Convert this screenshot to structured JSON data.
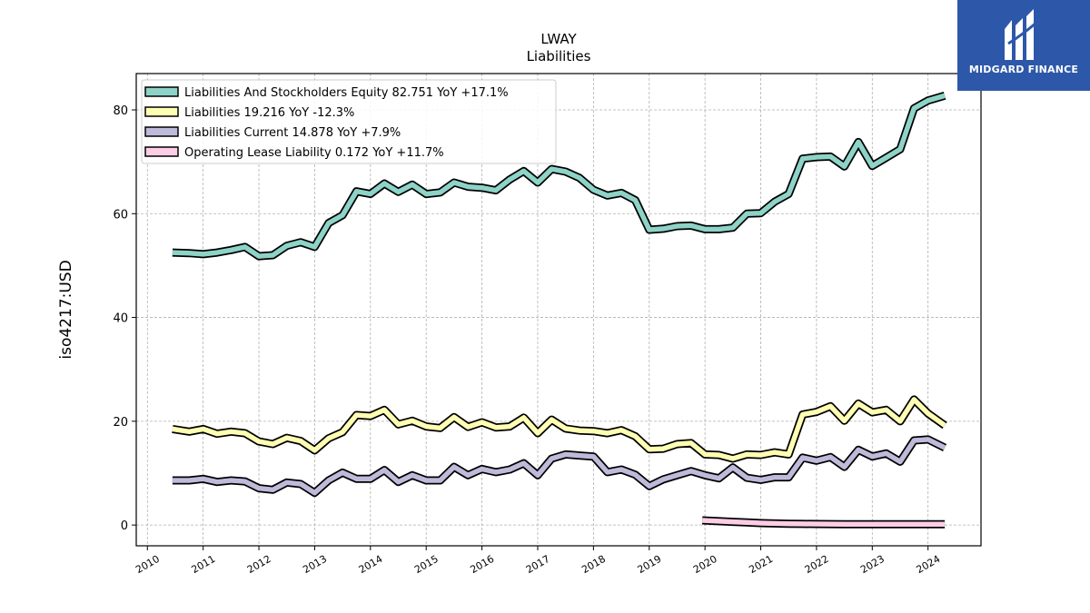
{
  "chart_data": {
    "type": "line",
    "title": "LWAY",
    "subtitle": "Liabilities",
    "ylabel": "iso4217:USD",
    "xlabel": "",
    "ylim": [
      -4,
      87
    ],
    "yticks": [
      0,
      20,
      40,
      60,
      80
    ],
    "xlim": [
      2009.8,
      2024.95
    ],
    "xticks": [
      2010,
      2011,
      2012,
      2013,
      2014,
      2015,
      2016,
      2017,
      2018,
      2019,
      2020,
      2021,
      2022,
      2023,
      2024
    ],
    "xticklabels": [
      "2010",
      "2011",
      "2012",
      "2013",
      "2014",
      "2015",
      "2016",
      "2017",
      "2018",
      "2019",
      "2020",
      "2021",
      "2022",
      "2023",
      "2024"
    ],
    "grid": true,
    "legend_position": "upper-left",
    "series": [
      {
        "name": "Liabilities And Stockholders Equity",
        "legend_label": "Liabilities And Stockholders Equity  82.751 YoY +17.1%",
        "color": "#8dd3c7",
        "x": [
          2010.45,
          2010.75,
          2011.0,
          2011.25,
          2011.5,
          2011.75,
          2012.0,
          2012.25,
          2012.5,
          2012.75,
          2013.0,
          2013.25,
          2013.5,
          2013.75,
          2014.0,
          2014.25,
          2014.5,
          2014.75,
          2015.0,
          2015.25,
          2015.5,
          2015.75,
          2016.0,
          2016.25,
          2016.5,
          2016.75,
          2017.0,
          2017.25,
          2017.5,
          2017.75,
          2018.0,
          2018.25,
          2018.5,
          2018.75,
          2019.0,
          2019.25,
          2019.5,
          2019.75,
          2020.0,
          2020.25,
          2020.5,
          2020.75,
          2021.0,
          2021.25,
          2021.5,
          2021.75,
          2022.0,
          2022.25,
          2022.5,
          2022.75,
          2023.0,
          2023.25,
          2023.5,
          2023.75,
          2024.0,
          2024.3
        ],
        "y": [
          52.5,
          52.4,
          52.2,
          52.5,
          53.0,
          53.6,
          51.8,
          52.0,
          53.8,
          54.5,
          53.6,
          58.2,
          59.7,
          64.3,
          63.8,
          65.8,
          64.2,
          65.6,
          63.8,
          64.1,
          66.0,
          65.2,
          65.0,
          64.5,
          66.6,
          68.2,
          66.0,
          68.6,
          68.1,
          66.9,
          64.6,
          63.5,
          64.0,
          62.6,
          56.9,
          57.1,
          57.6,
          57.7,
          57.0,
          57.0,
          57.3,
          60.0,
          60.1,
          62.3,
          63.8,
          70.6,
          70.9,
          71.0,
          69.1,
          73.8,
          69.2,
          70.8,
          72.4,
          80.3,
          81.8,
          82.75
        ]
      },
      {
        "name": "Liabilities",
        "legend_label": "Liabilities  19.216 YoY -12.3%",
        "color": "#ffffb3",
        "x": [
          2010.45,
          2010.75,
          2011.0,
          2011.25,
          2011.5,
          2011.75,
          2012.0,
          2012.25,
          2012.5,
          2012.75,
          2013.0,
          2013.25,
          2013.5,
          2013.75,
          2014.0,
          2014.25,
          2014.5,
          2014.75,
          2015.0,
          2015.25,
          2015.5,
          2015.75,
          2016.0,
          2016.25,
          2016.5,
          2016.75,
          2017.0,
          2017.25,
          2017.5,
          2017.75,
          2018.0,
          2018.25,
          2018.5,
          2018.75,
          2019.0,
          2019.25,
          2019.5,
          2019.75,
          2020.0,
          2020.25,
          2020.5,
          2020.75,
          2021.0,
          2021.25,
          2021.5,
          2021.75,
          2022.0,
          2022.25,
          2022.5,
          2022.75,
          2023.0,
          2023.25,
          2023.5,
          2023.75,
          2024.0,
          2024.3
        ],
        "y": [
          18.5,
          18.0,
          18.5,
          17.6,
          18.0,
          17.7,
          16.1,
          15.6,
          16.8,
          16.2,
          14.4,
          16.7,
          17.9,
          21.2,
          21.0,
          22.2,
          19.4,
          20.1,
          19.0,
          18.7,
          20.8,
          18.9,
          19.8,
          18.8,
          19.0,
          20.7,
          17.7,
          20.3,
          18.6,
          18.2,
          18.1,
          17.7,
          18.3,
          17.1,
          14.6,
          14.7,
          15.6,
          15.8,
          13.6,
          13.5,
          12.8,
          13.6,
          13.5,
          14.0,
          13.6,
          21.3,
          21.8,
          22.9,
          20.1,
          23.4,
          21.7,
          22.2,
          20.0,
          24.2,
          21.5,
          19.2
        ]
      },
      {
        "name": "Liabilities Current",
        "legend_label": "Liabilities Current  14.878 YoY +7.9%",
        "color": "#bebada",
        "x": [
          2010.45,
          2010.75,
          2011.0,
          2011.25,
          2011.5,
          2011.75,
          2012.0,
          2012.25,
          2012.5,
          2012.75,
          2013.0,
          2013.25,
          2013.5,
          2013.75,
          2014.0,
          2014.25,
          2014.5,
          2014.75,
          2015.0,
          2015.25,
          2015.5,
          2015.75,
          2016.0,
          2016.25,
          2016.5,
          2016.75,
          2017.0,
          2017.25,
          2017.5,
          2017.75,
          2018.0,
          2018.25,
          2018.5,
          2018.75,
          2019.0,
          2019.25,
          2019.5,
          2019.75,
          2020.0,
          2020.25,
          2020.5,
          2020.75,
          2021.0,
          2021.25,
          2021.5,
          2021.75,
          2022.0,
          2022.25,
          2022.5,
          2022.75,
          2023.0,
          2023.25,
          2023.5,
          2023.75,
          2024.0,
          2024.3
        ],
        "y": [
          8.6,
          8.6,
          8.9,
          8.3,
          8.6,
          8.4,
          7.1,
          6.8,
          8.2,
          7.9,
          6.2,
          8.6,
          10.1,
          8.9,
          8.9,
          10.6,
          8.3,
          9.6,
          8.6,
          8.6,
          11.2,
          9.6,
          10.8,
          10.2,
          10.7,
          11.9,
          9.6,
          12.8,
          13.6,
          13.4,
          13.2,
          10.2,
          10.7,
          9.7,
          7.5,
          8.8,
          9.6,
          10.4,
          9.6,
          9.0,
          11.1,
          9.1,
          8.7,
          9.2,
          9.2,
          13.0,
          12.4,
          13.1,
          11.2,
          14.5,
          13.2,
          13.8,
          12.2,
          16.3,
          16.5,
          14.9
        ]
      },
      {
        "name": "Operating Lease Liability",
        "legend_label": "Operating Lease Liability  0.172 YoY +11.7%",
        "color": "#fccde5",
        "x": [
          2019.95,
          2020.25,
          2020.5,
          2020.75,
          2021.0,
          2021.25,
          2021.5,
          2021.75,
          2022.0,
          2022.25,
          2022.5,
          2022.75,
          2023.0,
          2023.25,
          2023.5,
          2023.75,
          2024.0,
          2024.3
        ],
        "y": [
          0.9,
          0.75,
          0.62,
          0.5,
          0.38,
          0.3,
          0.26,
          0.22,
          0.2,
          0.18,
          0.17,
          0.16,
          0.17,
          0.16,
          0.15,
          0.16,
          0.17,
          0.172
        ]
      }
    ]
  },
  "watermark": {
    "text": "MIDGARD FINANCE",
    "color": "#2d58a9"
  }
}
